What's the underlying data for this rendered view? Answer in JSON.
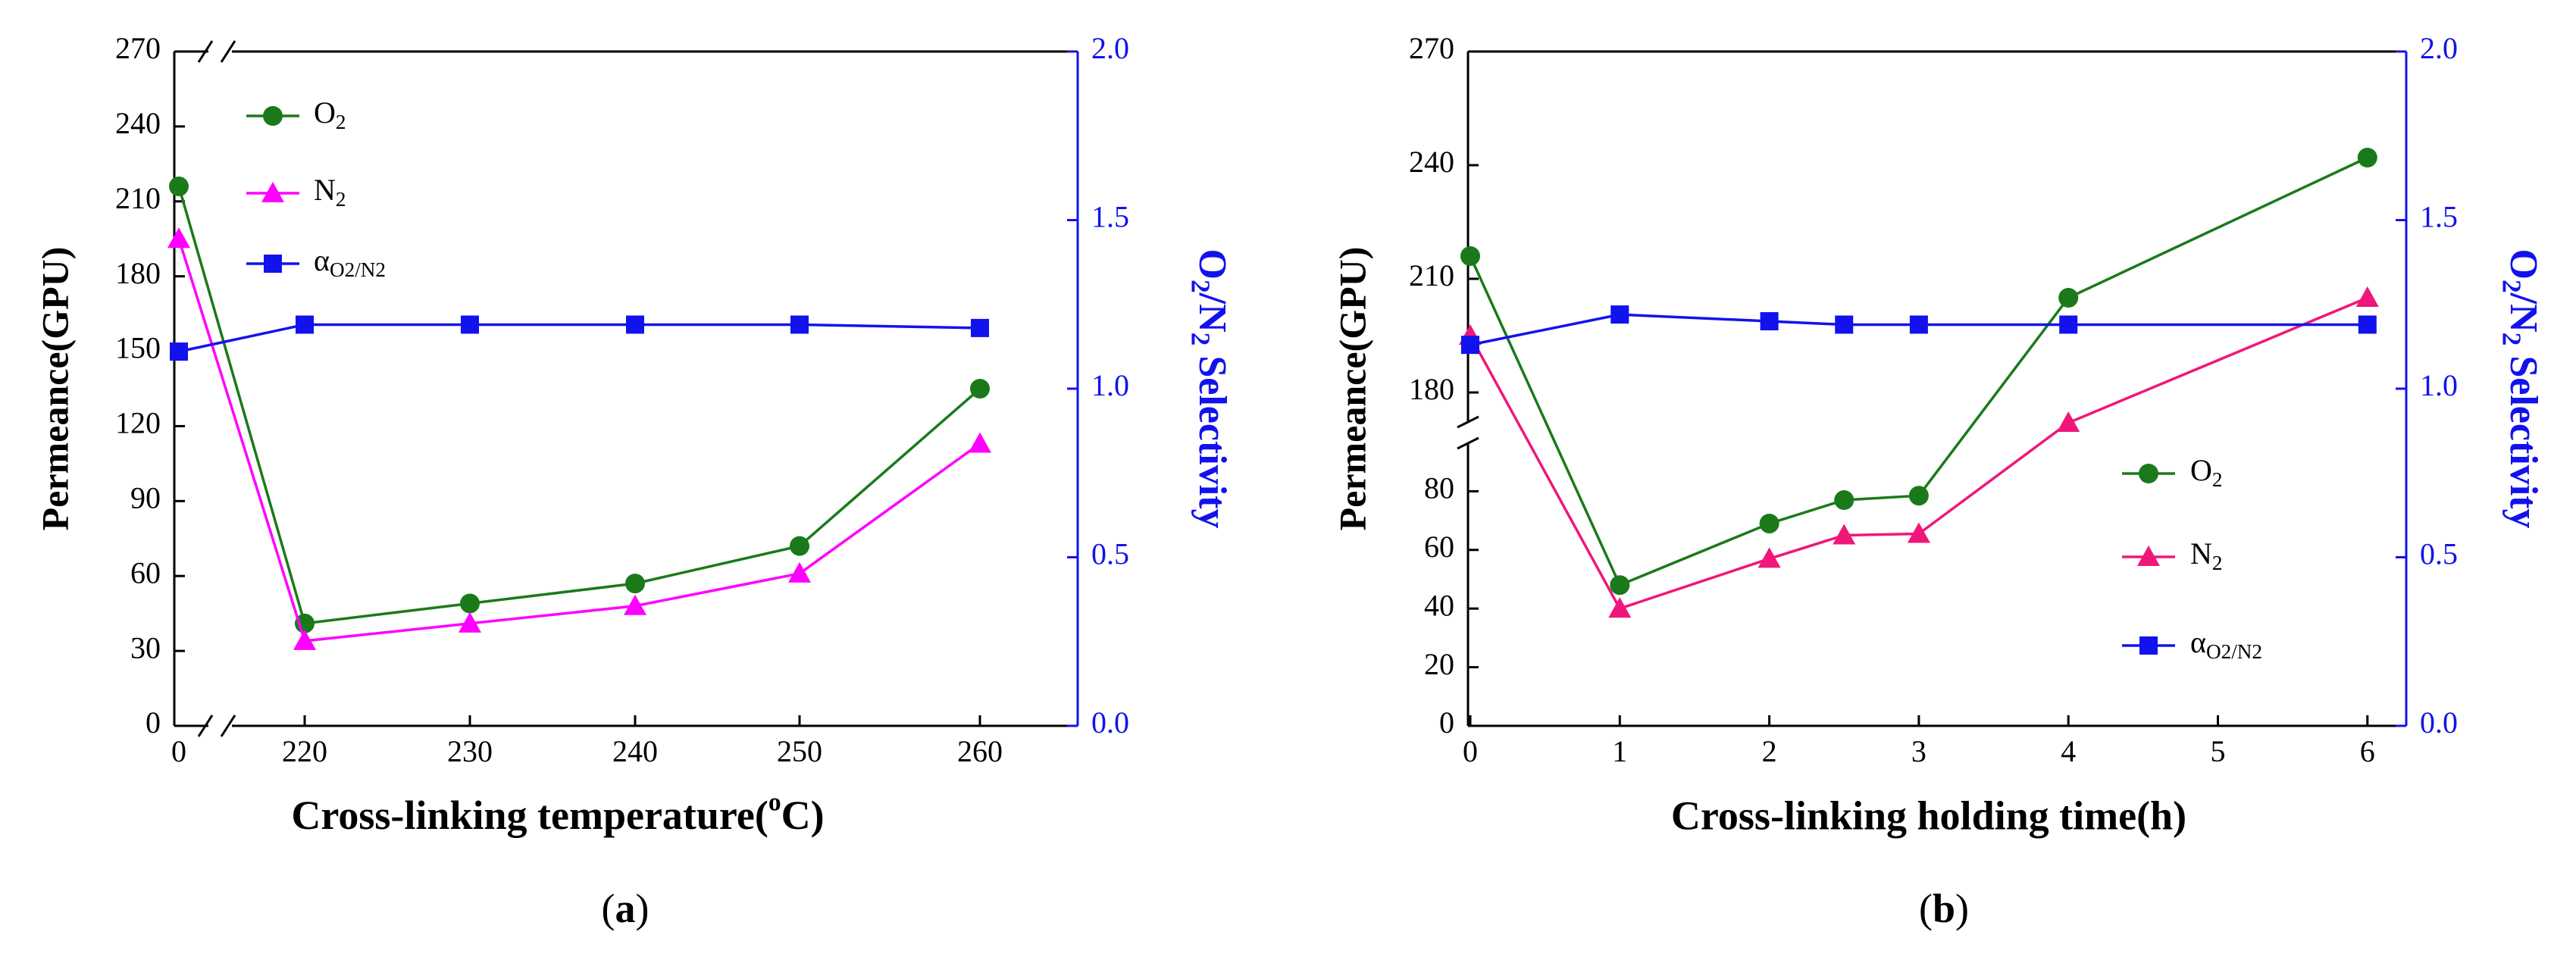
{
  "chart_data": [
    {
      "panel_label": "(a)",
      "type": "line",
      "xlabel": "Cross-linking temperature(°C)",
      "ylabel": "Permeance(GPU)",
      "y2label": "O₂/N₂ Selectivity",
      "x": [
        0,
        220,
        230,
        240,
        250,
        260
      ],
      "x_ticks": [
        "0",
        "220",
        "230",
        "240",
        "250",
        "260"
      ],
      "x_axis_break": "between 0 and 220",
      "ylim": [
        0,
        270
      ],
      "y_ticks": [
        "0",
        "30",
        "60",
        "90",
        "120",
        "150",
        "180",
        "210",
        "240",
        "270"
      ],
      "y2lim": [
        0.0,
        2.0
      ],
      "y2_ticks": [
        "0.0",
        "0.5",
        "1.0",
        "1.5",
        "2.0"
      ],
      "legend_position": "top-left",
      "series": [
        {
          "name": "O₂",
          "axis": "left",
          "marker": "circle",
          "color": "#1a7a1a",
          "values": [
            216,
            41,
            49,
            57,
            72,
            135
          ]
        },
        {
          "name": "N₂",
          "axis": "left",
          "marker": "triangle",
          "color": "#ff00ff",
          "values": [
            195,
            34,
            41,
            48,
            61,
            113
          ]
        },
        {
          "name": "αO₂/N₂",
          "axis": "right",
          "marker": "square",
          "color": "#1212ee",
          "values": [
            1.11,
            1.19,
            1.19,
            1.19,
            1.19,
            1.18
          ]
        }
      ]
    },
    {
      "panel_label": "(b)",
      "type": "line",
      "xlabel": "Cross-linking holding time(h)",
      "ylabel": "Permeance(GPU)",
      "y2label": "O₂/N₂ Selectivity",
      "x": [
        0,
        1,
        2,
        2.5,
        3,
        4,
        6
      ],
      "x_ticks": [
        "0",
        "1",
        "2",
        "3",
        "4",
        "5",
        "6"
      ],
      "xlim": [
        0,
        6.3
      ],
      "y_axis_break": "between 80 and 170",
      "y_lower_range": [
        0,
        90
      ],
      "y_upper_range": [
        170,
        270
      ],
      "y_ticks": [
        "0",
        "20",
        "40",
        "60",
        "80",
        "180",
        "210",
        "240",
        "270"
      ],
      "y2lim": [
        0.0,
        2.0
      ],
      "y2_ticks": [
        "0.0",
        "0.5",
        "1.0",
        "1.5",
        "2.0"
      ],
      "legend_position": "bottom-right",
      "series": [
        {
          "name": "O₂",
          "axis": "left",
          "marker": "circle",
          "color": "#1a7a1a",
          "values": [
            216,
            48,
            69,
            77,
            78.5,
            205,
            242
          ]
        },
        {
          "name": "N₂",
          "axis": "left",
          "marker": "triangle",
          "color": "#f0167a",
          "values": [
            195,
            40,
            57,
            65,
            65.5,
            172,
            205
          ]
        },
        {
          "name": "αO₂/N₂",
          "axis": "right",
          "marker": "square",
          "color": "#1212ee",
          "values": [
            1.13,
            1.22,
            1.2,
            1.19,
            1.19,
            1.19,
            1.19
          ]
        }
      ]
    }
  ]
}
